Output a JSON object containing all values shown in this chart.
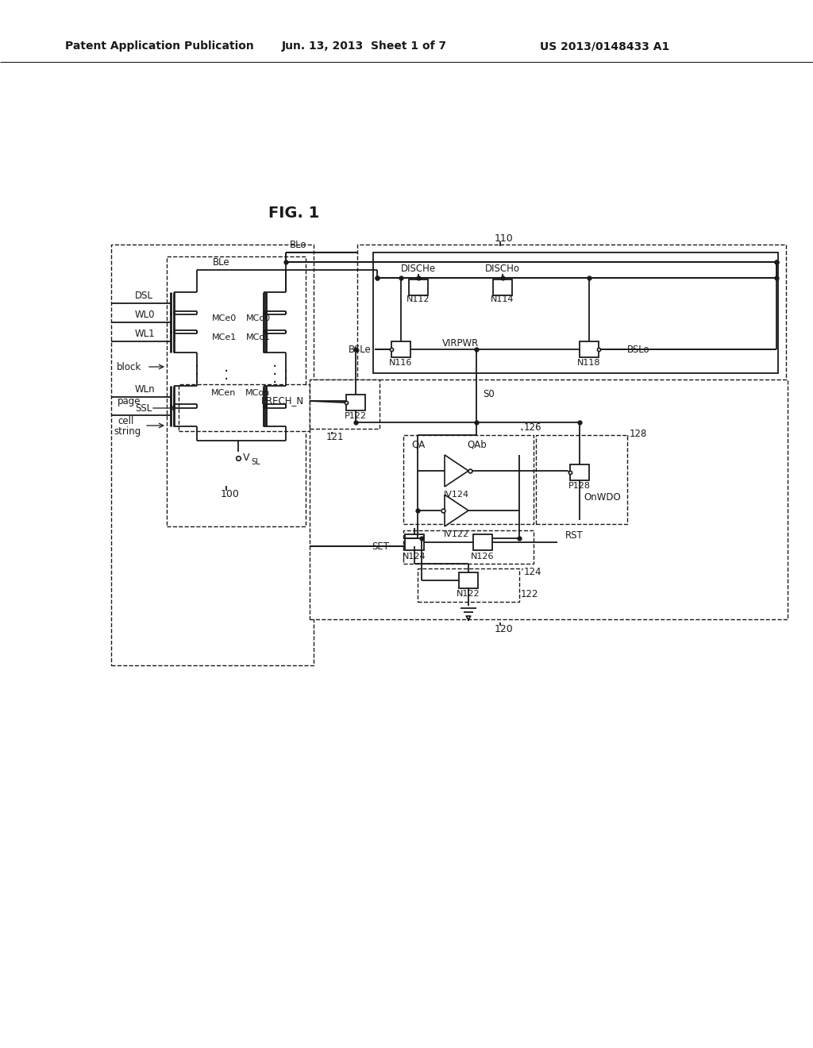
{
  "bg": "#ffffff",
  "lc": "#1a1a1a",
  "header_left": "Patent Application Publication",
  "header_mid": "Jun. 13, 2013  Sheet 1 of 7",
  "header_right": "US 2013/0148433 A1",
  "fig_label": "FIG. 1"
}
